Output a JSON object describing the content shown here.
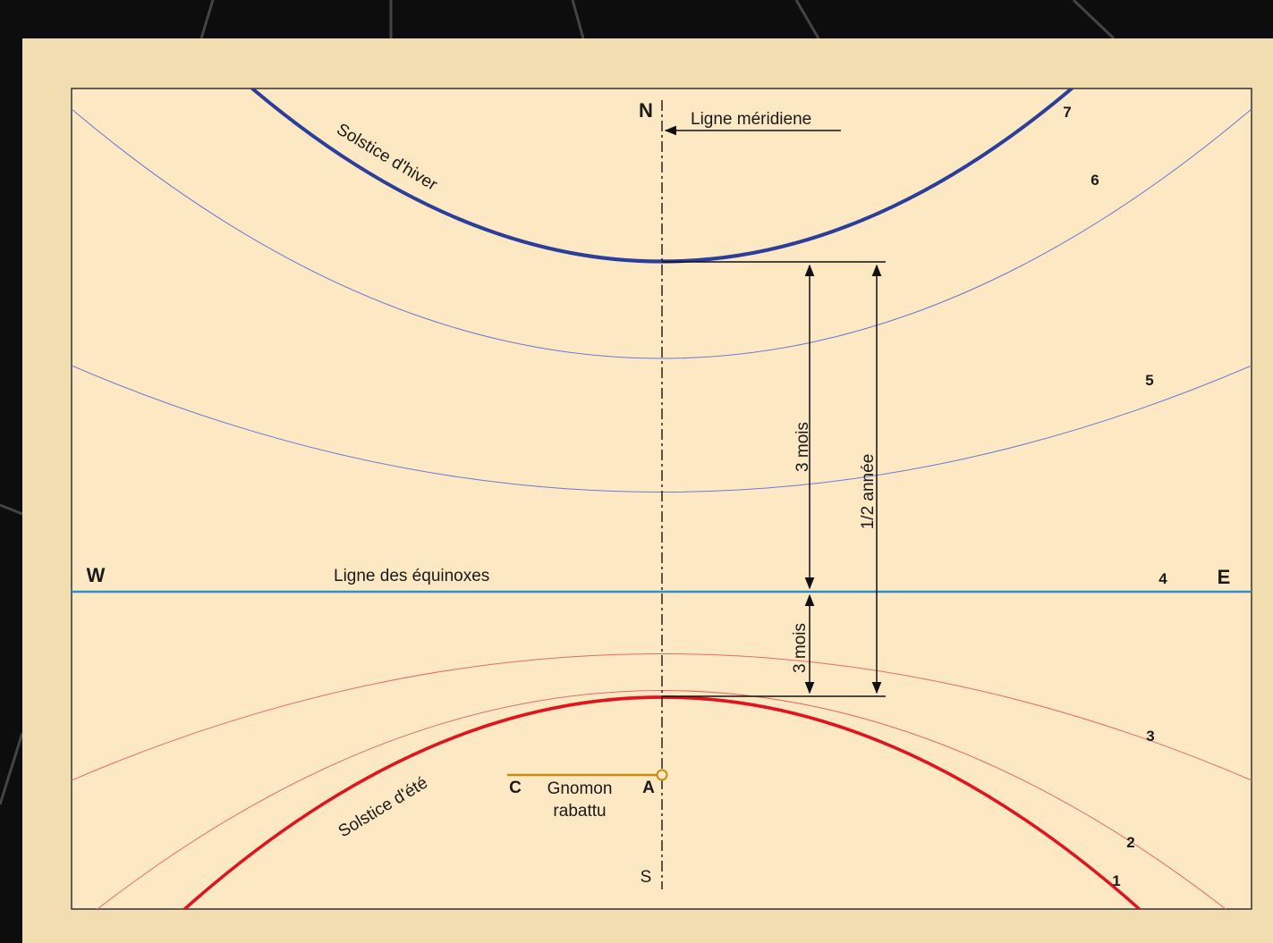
{
  "colors": {
    "page_background": "#0d0d0d",
    "board": "#f1ddb0",
    "panel": "#fde8c4",
    "winter_solstice": "#2b3e9a",
    "winter_family": "#6a78d8",
    "equinox": "#2a8fcf",
    "summer_solstice": "#e0141e",
    "summer_family": "#e06c6c",
    "gnomon": "#c88a10"
  },
  "directions": {
    "north": "N",
    "south": "S",
    "west": "W",
    "east": "E"
  },
  "labels": {
    "meridian": "Ligne méridiene",
    "winter_solstice": "Solstice d'hiver",
    "summer_solstice": "Solstice d'été",
    "equinox_line": "Ligne des équinoxes",
    "three_months_upper": "3 mois",
    "three_months_lower": "3 mois",
    "half_year": "1/2 année",
    "gnomon_end": "C",
    "gnomon_foot": "A",
    "gnomon_line1": "Gnomon",
    "gnomon_line2": "rabattu"
  },
  "curve_numbers": [
    "1",
    "2",
    "3",
    "4",
    "5",
    "6",
    "7"
  ]
}
